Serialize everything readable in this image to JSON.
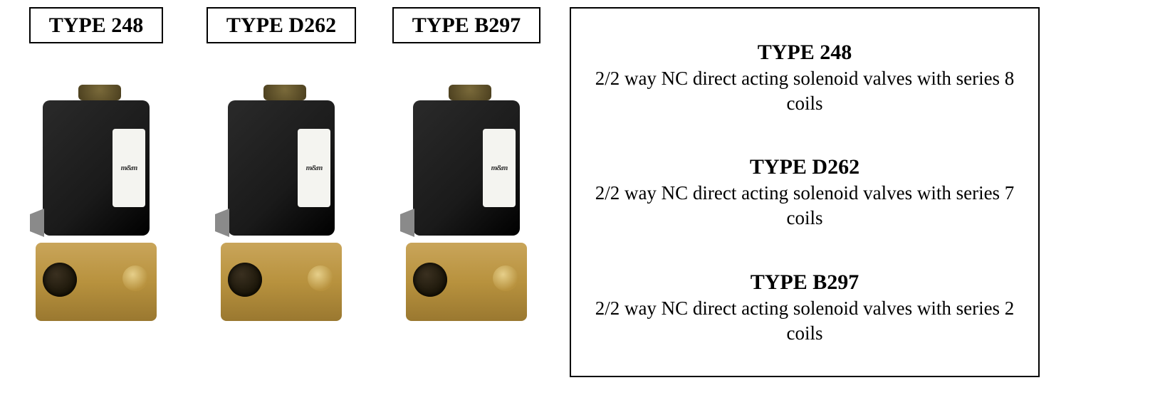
{
  "products": [
    {
      "badge": "TYPE 248",
      "coil_color": "#1a1a1a",
      "brass_color": "#b8923e",
      "brand": "m&m"
    },
    {
      "badge": "TYPE D262",
      "coil_color": "#1a1a1a",
      "brass_color": "#b8923e",
      "brand": "m&m"
    },
    {
      "badge": "TYPE B297",
      "coil_color": "#1a1a1a",
      "brass_color": "#b8923e",
      "brand": "m&m"
    }
  ],
  "descriptions": [
    {
      "title": "TYPE 248",
      "text": "2/2 way NC direct acting solenoid valves with series 8 coils"
    },
    {
      "title": "TYPE D262",
      "text": "2/2 way NC direct acting solenoid valves with series 7 coils"
    },
    {
      "title": "TYPE B297",
      "text": "2/2 way NC direct acting solenoid valves with series 2 coils"
    }
  ],
  "style": {
    "page_bg": "#ffffff",
    "border_color": "#000000",
    "text_color": "#000000",
    "badge_fontsize": 30,
    "desc_title_fontsize": 30,
    "desc_text_fontsize": 27
  }
}
